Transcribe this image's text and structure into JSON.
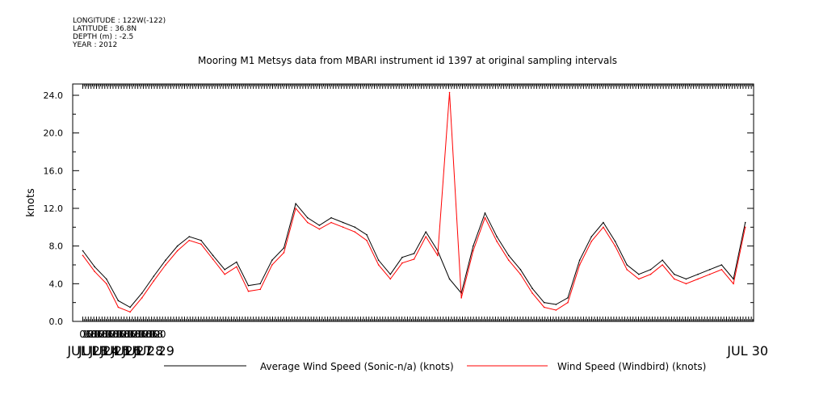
{
  "header": {
    "longitude": "LONGITUDE : 122W(-122)",
    "latitude": "LATITUDE : 36.8N",
    "depth": "DEPTH (m) : -2.5",
    "year": "YEAR : 2012",
    "title": "Mooring M1 Metsys data from MBARI instrument id 1397 at original sampling intervals"
  },
  "chart_data": {
    "type": "line",
    "title": "Mooring M1 Metsys data from MBARI instrument id 1397 at original sampling intervals",
    "ylabel": "knots",
    "xlabel": "",
    "ylim": [
      0,
      25.2
    ],
    "xlim_hours": [
      -22,
      1463
    ],
    "y_ticks": [
      "0.0",
      "4.0",
      "8.0",
      "12.0",
      "16.0",
      "20.0",
      "24.0"
    ],
    "x_hour_ticks": [
      "06",
      "12",
      "18",
      "00",
      "06",
      "12",
      "18",
      "00",
      "06",
      "12",
      "18",
      "00",
      "06",
      "12",
      "18",
      "00",
      "06",
      "12",
      "18",
      "00",
      "06",
      "12",
      "18",
      "00",
      "06",
      "12",
      "18",
      "00"
    ],
    "x_day_labels": [
      "JUL 23",
      "JUL 24",
      "JUL 25",
      "JUL 26",
      "JUL 27",
      "JUL 28",
      "JUL 29",
      "JUL 30"
    ],
    "grid": false,
    "legend_position": "bottom",
    "series": [
      {
        "name": "Average Wind Speed (Sonic-n/a) (knots)",
        "color": "#000000",
        "x_hours": [
          0,
          3,
          6,
          9,
          12,
          15,
          18,
          21,
          24,
          27,
          30,
          33,
          36,
          39,
          42,
          45,
          48,
          51,
          54,
          57,
          60,
          63,
          66,
          69,
          72,
          75,
          78,
          81,
          84,
          87,
          90,
          93,
          96,
          99,
          102,
          105,
          108,
          111,
          114,
          117,
          120,
          123,
          126,
          129,
          132,
          135,
          138,
          141,
          144,
          147,
          150,
          153,
          156,
          159,
          162,
          165,
          168
        ],
        "values": [
          7.5,
          5.8,
          4.5,
          2.2,
          1.5,
          3.0,
          4.8,
          6.5,
          8.0,
          9.0,
          8.6,
          7.0,
          5.5,
          6.3,
          3.8,
          4.0,
          6.5,
          7.8,
          12.5,
          11.0,
          10.2,
          11.0,
          10.5,
          10.0,
          9.2,
          6.5,
          5.0,
          6.8,
          7.2,
          9.5,
          7.5,
          4.5,
          3.0,
          8.0,
          11.5,
          9.0,
          7.0,
          5.5,
          3.5,
          2.0,
          1.8,
          2.5,
          6.5,
          9.0,
          10.5,
          8.5,
          6.0,
          5.0,
          5.5,
          6.5,
          5.0,
          4.5,
          5.0,
          5.5,
          6.0,
          4.5,
          10.5
        ]
      },
      {
        "name": "Wind Speed (Windbird) (knots)",
        "color": "#ff0000",
        "x_hours": [
          0,
          3,
          6,
          9,
          12,
          15,
          18,
          21,
          24,
          27,
          30,
          33,
          36,
          39,
          42,
          45,
          48,
          51,
          54,
          57,
          60,
          63,
          66,
          69,
          72,
          75,
          78,
          81,
          84,
          87,
          90,
          93,
          96,
          99,
          102,
          105,
          108,
          111,
          114,
          117,
          120,
          123,
          126,
          129,
          132,
          135,
          138,
          141,
          144,
          147,
          150,
          153,
          156,
          159,
          162,
          165,
          168
        ],
        "values": [
          7.0,
          5.3,
          4.0,
          1.5,
          1.0,
          2.5,
          4.3,
          6.0,
          7.5,
          8.6,
          8.2,
          6.6,
          5.0,
          5.8,
          3.2,
          3.4,
          6.0,
          7.3,
          12.0,
          10.5,
          9.8,
          10.5,
          10.0,
          9.5,
          8.6,
          6.0,
          4.5,
          6.2,
          6.6,
          9.0,
          7.0,
          24.3,
          2.5,
          7.5,
          11.0,
          8.5,
          6.5,
          5.0,
          3.0,
          1.5,
          1.2,
          2.0,
          6.0,
          8.5,
          10.0,
          8.0,
          5.5,
          4.5,
          5.0,
          6.0,
          4.5,
          4.0,
          4.5,
          5.0,
          5.5,
          4.0,
          10.0
        ]
      }
    ],
    "series_note": ""
  }
}
